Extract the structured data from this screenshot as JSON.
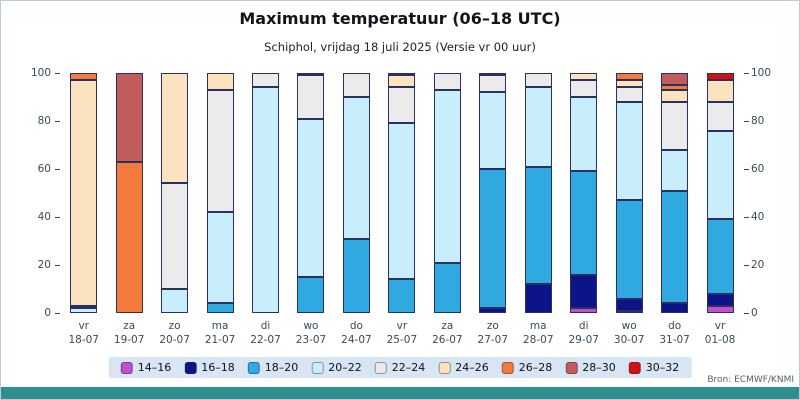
{
  "header": {
    "title": "Maximum temperatuur (06–18 UTC)",
    "subtitle": "Schiphol, vrijdag 18 juli 2025 (Versie vr 00 uur)"
  },
  "footer": {
    "source": "Bron: ECMWF/KNMI"
  },
  "chart_data": {
    "type": "bar",
    "stacked": true,
    "title": "Maximum temperatuur (06–18 UTC)",
    "subtitle": "Schiphol, vrijdag 18 juli 2025 (Versie vr 00 uur)",
    "ylabel": "",
    "xlabel": "",
    "ylim": [
      0,
      100
    ],
    "yticks": [
      0,
      20,
      40,
      60,
      80,
      100
    ],
    "legend_position": "bottom",
    "grid": false,
    "categories": [
      {
        "dow": "vr",
        "date": "18-07"
      },
      {
        "dow": "za",
        "date": "19-07"
      },
      {
        "dow": "zo",
        "date": "20-07"
      },
      {
        "dow": "ma",
        "date": "21-07"
      },
      {
        "dow": "di",
        "date": "22-07"
      },
      {
        "dow": "wo",
        "date": "23-07"
      },
      {
        "dow": "do",
        "date": "24-07"
      },
      {
        "dow": "vr",
        "date": "25-07"
      },
      {
        "dow": "za",
        "date": "26-07"
      },
      {
        "dow": "zo",
        "date": "27-07"
      },
      {
        "dow": "ma",
        "date": "28-07"
      },
      {
        "dow": "di",
        "date": "29-07"
      },
      {
        "dow": "wo",
        "date": "30-07"
      },
      {
        "dow": "do",
        "date": "31-07"
      },
      {
        "dow": "vr",
        "date": "01-08"
      }
    ],
    "series": [
      {
        "name": "14–16",
        "color": "#c050cc",
        "values": [
          0,
          0,
          0,
          0,
          0,
          0,
          0,
          0,
          0,
          0,
          0,
          2,
          1,
          0,
          3
        ]
      },
      {
        "name": "16–18",
        "color": "#0c1487",
        "values": [
          0,
          0,
          0,
          0,
          0,
          0,
          0,
          0,
          0,
          2,
          12,
          14,
          5,
          4,
          5
        ]
      },
      {
        "name": "18–20",
        "color": "#30a8e0",
        "values": [
          0,
          0,
          0,
          4,
          0,
          15,
          31,
          14,
          21,
          58,
          49,
          43,
          41,
          47,
          31
        ]
      },
      {
        "name": "20–22",
        "color": "#c8edfb",
        "values": [
          2,
          0,
          10,
          38,
          94,
          66,
          59,
          65,
          72,
          32,
          33,
          31,
          41,
          17,
          37
        ]
      },
      {
        "name": "22–24",
        "color": "#ebebec",
        "values": [
          1,
          0,
          44,
          51,
          6,
          18,
          10,
          15,
          7,
          7,
          6,
          7,
          6,
          20,
          12
        ]
      },
      {
        "name": "24–26",
        "color": "#fbe3c0",
        "values": [
          94,
          0,
          46,
          7,
          0,
          1,
          0,
          5,
          0,
          1,
          0,
          3,
          3,
          5,
          9
        ]
      },
      {
        "name": "26–28",
        "color": "#f4793d",
        "values": [
          3,
          63,
          0,
          0,
          0,
          0,
          0,
          1,
          0,
          0,
          0,
          0,
          3,
          2,
          0
        ]
      },
      {
        "name": "28–30",
        "color": "#c05c5c",
        "values": [
          0,
          37,
          0,
          0,
          0,
          0,
          0,
          0,
          0,
          0,
          0,
          0,
          0,
          5,
          0
        ]
      },
      {
        "name": "30–32",
        "color": "#d41010",
        "values": [
          0,
          0,
          0,
          0,
          0,
          0,
          0,
          0,
          0,
          0,
          0,
          0,
          0,
          0,
          3
        ]
      }
    ]
  }
}
